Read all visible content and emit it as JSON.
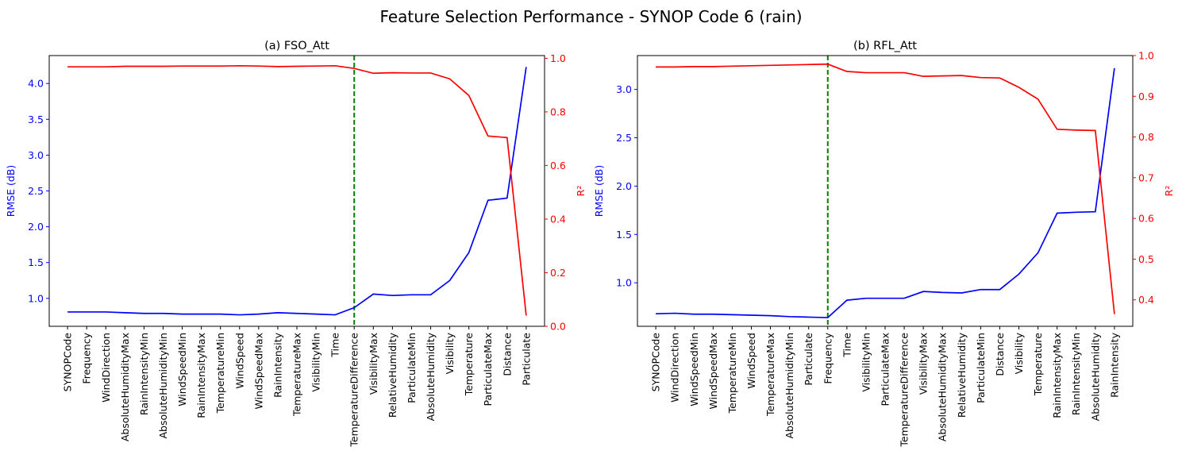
{
  "figure": {
    "title": "Feature Selection Performance - SYNOP Code 6 (rain)"
  },
  "colors": {
    "rmse": "#0000ff",
    "r2": "#ff0000",
    "divider": "#008000",
    "axis": "#000000"
  },
  "chart_data": [
    {
      "type": "line",
      "title": "(a) FSO_Att",
      "xlabel": "",
      "ylabel_left": "RMSE (dB)",
      "ylabel_right": "R²",
      "categories": [
        "SYNOPCode",
        "Frequency",
        "WindDirection",
        "AbsoluteHumidityMax",
        "RainIntensityMin",
        "AbsoluteHumidityMin",
        "WindSpeedMin",
        "RainIntensityMax",
        "TemperatureMin",
        "WindSpeed",
        "WindSpeedMax",
        "RainIntensity",
        "TemperatureMax",
        "VisibilityMin",
        "Time",
        "TemperatureDifference",
        "VisibilityMax",
        "RelativeHumidity",
        "ParticulateMin",
        "AbsoluteHumidity",
        "Visibility",
        "Temperature",
        "ParticulateMax",
        "Distance",
        "Particulate"
      ],
      "ylim_left": [
        0.61,
        4.39
      ],
      "ylim_right": [
        0.0,
        1.01
      ],
      "yticks_left": [
        "1.0",
        "1.5",
        "2.0",
        "2.5",
        "3.0",
        "3.5",
        "4.0"
      ],
      "yticks_right": [
        "0.0",
        "0.2",
        "0.4",
        "0.6",
        "0.8",
        "1.0"
      ],
      "divider_at": "TemperatureDifference",
      "series": [
        {
          "name": "RMSE (dB)",
          "axis": "left",
          "values": [
            0.81,
            0.81,
            0.81,
            0.8,
            0.79,
            0.79,
            0.78,
            0.78,
            0.78,
            0.77,
            0.78,
            0.8,
            0.79,
            0.78,
            0.77,
            0.87,
            1.06,
            1.04,
            1.05,
            1.05,
            1.25,
            1.64,
            2.37,
            2.4,
            4.23
          ]
        },
        {
          "name": "R²",
          "axis": "right",
          "values": [
            0.968,
            0.968,
            0.968,
            0.97,
            0.97,
            0.97,
            0.971,
            0.971,
            0.971,
            0.972,
            0.971,
            0.969,
            0.97,
            0.971,
            0.972,
            0.962,
            0.944,
            0.946,
            0.945,
            0.945,
            0.923,
            0.861,
            0.71,
            0.704,
            0.04
          ]
        }
      ]
    },
    {
      "type": "line",
      "title": "(b) RFL_Att",
      "xlabel": "",
      "ylabel_left": "RMSE (dB)",
      "ylabel_right": "R²",
      "categories": [
        "SYNOPCode",
        "WindDirection",
        "WindSpeedMin",
        "WindSpeedMax",
        "TemperatureMin",
        "WindSpeed",
        "TemperatureMax",
        "AbsoluteHumidityMin",
        "Particulate",
        "Frequency",
        "Time",
        "VisibilityMin",
        "ParticulateMax",
        "TemperatureDifference",
        "VisibilityMax",
        "AbsoluteHumidityMax",
        "RelativeHumidity",
        "ParticulateMin",
        "Distance",
        "Visibility",
        "Temperature",
        "RainIntensityMax",
        "RainIntensityMin",
        "AbsoluteHumidity",
        "RainIntensity"
      ],
      "ylim_left": [
        0.55,
        3.35
      ],
      "ylim_right": [
        0.335,
        1.0
      ],
      "yticks_left": [
        "1.0",
        "1.5",
        "2.0",
        "2.5",
        "3.0"
      ],
      "yticks_right": [
        "0.4",
        "0.5",
        "0.6",
        "0.7",
        "0.8",
        "0.9",
        "1.0"
      ],
      "divider_at": "Frequency",
      "series": [
        {
          "name": "RMSE (dB)",
          "axis": "left",
          "values": [
            0.68,
            0.685,
            0.675,
            0.675,
            0.67,
            0.665,
            0.66,
            0.65,
            0.645,
            0.64,
            0.82,
            0.84,
            0.84,
            0.84,
            0.91,
            0.9,
            0.895,
            0.93,
            0.93,
            1.09,
            1.31,
            1.72,
            1.73,
            1.735,
            3.22
          ]
        },
        {
          "name": "R²",
          "axis": "right",
          "values": [
            0.972,
            0.972,
            0.973,
            0.973,
            0.974,
            0.975,
            0.976,
            0.977,
            0.978,
            0.979,
            0.961,
            0.958,
            0.958,
            0.958,
            0.949,
            0.95,
            0.951,
            0.946,
            0.945,
            0.922,
            0.893,
            0.819,
            0.817,
            0.816,
            0.365
          ]
        }
      ]
    }
  ]
}
